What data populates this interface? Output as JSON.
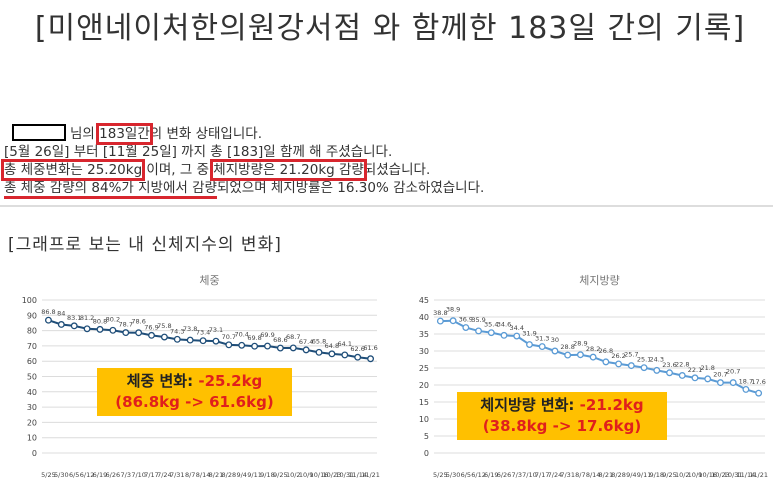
{
  "header": {
    "title": "[미앤네이처한의원강서점 와 함께한 183일 간의 기록]"
  },
  "summary": {
    "lines": [
      [
        "님의 ",
        "183일간",
        "의 변화 상태입니다."
      ],
      [
        "[5월 26일] 부터 [11월 25일] 까지 총 [183]일 함께 해 주셨습니다."
      ],
      [
        "총 체중변화는 25.20kg",
        " 이며, 그 중 ",
        "체지방량은 21.20kg 감량",
        "되셨습니다."
      ],
      [
        "총 체중 감량의 84%가 지방에서 감량",
        "되었으며 체지방률은 16.30% 감소하였습니다."
      ]
    ]
  },
  "section_title": "[그래프로 보는 내 신체지수의 변화]",
  "chart_data": [
    {
      "type": "line",
      "title": "체중",
      "color": "#1f4e79",
      "categories": [
        "5/25",
        "5/30",
        "6/5",
        "6/12",
        "6/19",
        "6/26",
        "7/3",
        "7/10",
        "7/17",
        "7/24",
        "7/31",
        "8/7",
        "8/14",
        "8/21",
        "8/28",
        "9/4",
        "9/11",
        "9/18",
        "9/25",
        "10/2",
        "10/9",
        "10/16",
        "10/23",
        "10/31",
        "11/14",
        "11/21"
      ],
      "values": [
        86.8,
        84,
        83.1,
        81.2,
        80.8,
        80.2,
        78.7,
        78.6,
        76.9,
        75.8,
        74.3,
        73.8,
        73.4,
        73.1,
        70.7,
        70.4,
        69.8,
        69.9,
        68.6,
        68.7,
        67.4,
        65.8,
        64.8,
        64.1,
        62.6,
        61.6
      ],
      "ylim": [
        0,
        100
      ],
      "yticks": [
        0,
        10,
        20,
        30,
        40,
        50,
        60,
        70,
        80,
        90,
        100
      ],
      "grid": true,
      "annotation": {
        "label": "체중 변화:",
        "value": "-25.2kg",
        "detail": "(86.8kg -> 61.6kg)"
      }
    },
    {
      "type": "line",
      "title": "체지방량",
      "color": "#5b9bd5",
      "categories": [
        "5/25",
        "5/30",
        "6/5",
        "6/12",
        "6/19",
        "6/26",
        "7/3",
        "7/10",
        "7/17",
        "7/24",
        "7/31",
        "8/7",
        "8/14",
        "8/21",
        "8/28",
        "9/4",
        "9/11",
        "9/18",
        "9/25",
        "10/2",
        "10/9",
        "10/16",
        "10/23",
        "10/31",
        "11/14",
        "11/21"
      ],
      "values": [
        38.8,
        38.9,
        36.9,
        35.9,
        35.4,
        34.6,
        34.4,
        31.9,
        31.3,
        30,
        28.8,
        28.9,
        28.2,
        26.8,
        26.2,
        25.7,
        25.1,
        24.3,
        23.6,
        22.8,
        22.1,
        21.8,
        20.7,
        20.7,
        18.7,
        17.6
      ],
      "ylim": [
        0,
        45
      ],
      "yticks": [
        0,
        5,
        10,
        15,
        20,
        25,
        30,
        35,
        40,
        45
      ],
      "grid": true,
      "annotation": {
        "label": "체지방량 변화:",
        "value": "-21.2kg",
        "detail": "(38.8kg -> 17.6kg)"
      }
    }
  ]
}
